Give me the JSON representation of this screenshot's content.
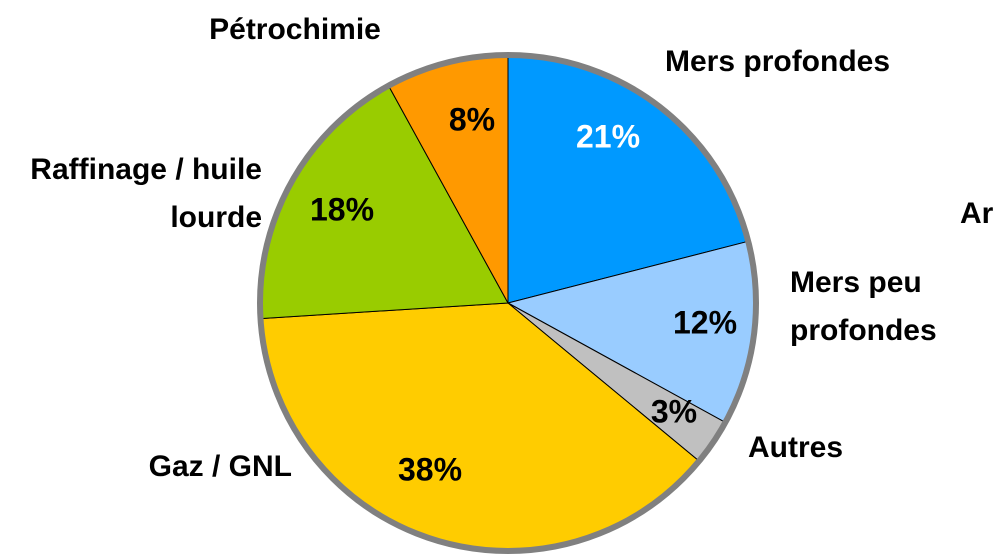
{
  "chart_data": {
    "type": "pie",
    "categories": [
      "Mers profondes",
      "Mers peu profondes",
      "Autres",
      "Gaz / GNL",
      "Raffinage / huile lourde",
      "Pétrochimie"
    ],
    "values": [
      21,
      12,
      3,
      38,
      18,
      8
    ],
    "value_labels": [
      "21%",
      "12%",
      "3%",
      "38%",
      "18%",
      "8%"
    ],
    "colors": [
      "#0099ff",
      "#99ccff",
      "#c0c0c0",
      "#ffcc00",
      "#99cc00",
      "#ff9900"
    ],
    "annotation": "Ar"
  }
}
